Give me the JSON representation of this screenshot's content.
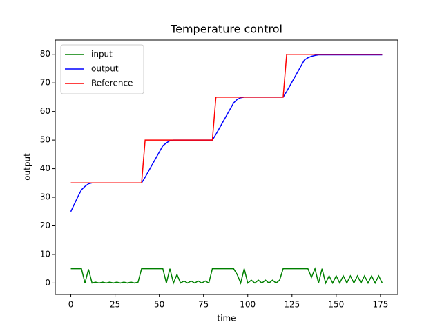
{
  "chart_data": {
    "type": "line",
    "title": "Temperature control",
    "x_label": "time",
    "y_label": "output",
    "x": [
      0,
      2,
      4,
      6,
      8,
      10,
      12,
      14,
      16,
      18,
      20,
      22,
      24,
      26,
      28,
      30,
      32,
      34,
      36,
      38,
      40,
      42,
      44,
      46,
      48,
      50,
      52,
      54,
      56,
      58,
      60,
      62,
      64,
      66,
      68,
      70,
      72,
      74,
      76,
      78,
      80,
      82,
      84,
      86,
      88,
      90,
      92,
      94,
      96,
      98,
      100,
      102,
      104,
      106,
      108,
      110,
      112,
      114,
      116,
      118,
      120,
      122,
      124,
      126,
      128,
      130,
      132,
      134,
      136,
      138,
      140,
      142,
      144,
      146,
      148,
      150,
      152,
      154,
      156,
      158,
      160,
      162,
      164,
      166,
      168,
      170,
      172,
      174,
      176
    ],
    "series": [
      {
        "name": "input",
        "color": "#008000",
        "values": [
          5,
          5,
          5,
          5,
          0,
          4.8,
          0,
          0.3,
          0,
          0.3,
          0,
          0.3,
          0,
          0.3,
          0,
          0.3,
          0,
          0.3,
          0,
          0.3,
          5,
          5,
          5,
          5,
          5,
          5,
          5,
          0,
          5,
          0,
          3,
          0,
          0.7,
          0,
          0.7,
          0,
          0.7,
          0,
          0.7,
          0,
          5,
          5,
          5,
          5,
          5,
          5,
          5,
          3,
          0,
          5,
          0,
          1,
          0,
          1,
          0,
          1,
          0,
          1,
          0,
          1,
          5,
          5,
          5,
          5,
          5,
          5,
          5,
          5,
          2,
          5,
          0,
          5,
          0,
          2.5,
          0,
          2.5,
          0,
          2.5,
          0,
          2.5,
          0,
          2.5,
          0,
          2.5,
          0,
          2.5,
          0,
          2.5,
          0
        ]
      },
      {
        "name": "output",
        "color": "#0000ff",
        "values": [
          25,
          27.6,
          30.2,
          32.6,
          33.8,
          34.7,
          35,
          35,
          35,
          35,
          35,
          35,
          35,
          35,
          35,
          35,
          35,
          35,
          35,
          35,
          35,
          37,
          39.2,
          41.4,
          43.6,
          45.8,
          48,
          49,
          49.8,
          50,
          50,
          50,
          50,
          50,
          50,
          50,
          50,
          50,
          50,
          50,
          50,
          52,
          54.2,
          56.4,
          58.6,
          60.8,
          63,
          64.2,
          64.8,
          65,
          65,
          65,
          65,
          65,
          65,
          65,
          65,
          65,
          65,
          65,
          65,
          67,
          69.2,
          71.4,
          73.6,
          75.8,
          78,
          78.8,
          79.3,
          79.6,
          79.8,
          79.8,
          79.8,
          79.8,
          79.8,
          79.8,
          79.8,
          79.8,
          79.8,
          79.8,
          79.8,
          79.8,
          79.8,
          79.8,
          79.8,
          79.8,
          79.8,
          79.8,
          79.8
        ]
      },
      {
        "name": "Reference",
        "color": "#ff0000",
        "values": [
          35,
          35,
          35,
          35,
          35,
          35,
          35,
          35,
          35,
          35,
          35,
          35,
          35,
          35,
          35,
          35,
          35,
          35,
          35,
          35,
          35,
          50,
          50,
          50,
          50,
          50,
          50,
          50,
          50,
          50,
          50,
          50,
          50,
          50,
          50,
          50,
          50,
          50,
          50,
          50,
          50,
          65,
          65,
          65,
          65,
          65,
          65,
          65,
          65,
          65,
          65,
          65,
          65,
          65,
          65,
          65,
          65,
          65,
          65,
          65,
          65,
          80,
          80,
          80,
          80,
          80,
          80,
          80,
          80,
          80,
          80,
          80,
          80,
          80,
          80,
          80,
          80,
          80,
          80,
          80,
          80,
          80,
          80,
          80,
          80,
          80,
          80,
          80,
          80
        ]
      }
    ],
    "xlim": [
      -8.8,
      184.8
    ],
    "xticks": [
      0,
      25,
      50,
      75,
      100,
      125,
      150,
      175
    ],
    "ylim": [
      -4,
      85
    ],
    "yticks": [
      0,
      10,
      20,
      30,
      40,
      50,
      60,
      70,
      80
    ],
    "grid": false,
    "legend": "upper-left"
  }
}
